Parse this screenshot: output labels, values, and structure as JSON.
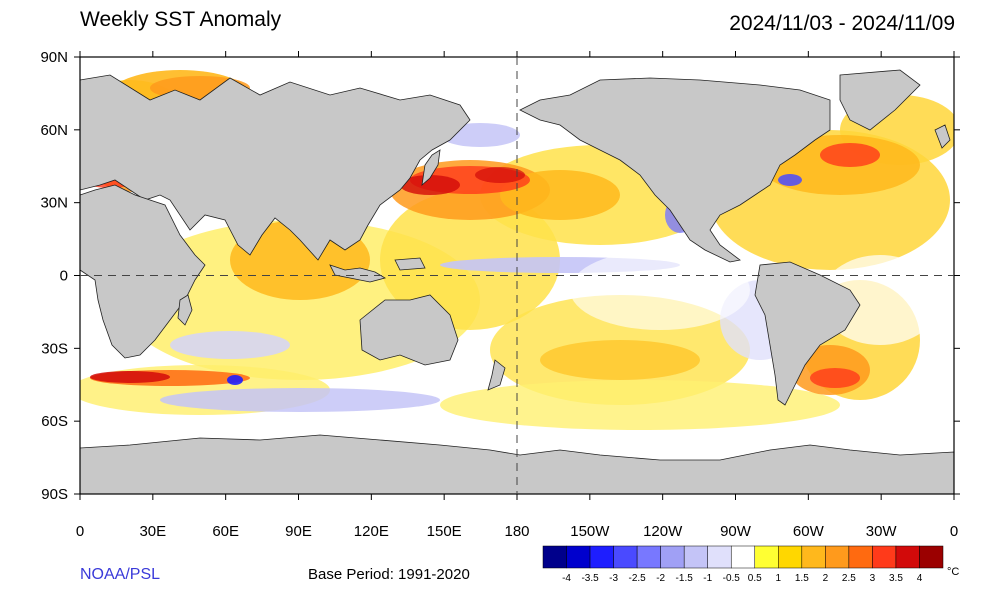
{
  "header": {
    "title": "Weekly SST Anomaly",
    "date_range": "2024/11/03 - 2024/11/09"
  },
  "axes": {
    "lat_labels": [
      "90N",
      "60N",
      "30N",
      "0",
      "30S",
      "60S",
      "90S"
    ],
    "lon_labels": [
      "0",
      "30E",
      "60E",
      "90E",
      "120E",
      "150E",
      "180",
      "150W",
      "120W",
      "90W",
      "60W",
      "30W",
      "0"
    ]
  },
  "footer": {
    "source": "NOAA/PSL",
    "base_period": "Base Period: 1991-2020"
  },
  "colorbar": {
    "labels": [
      "-4",
      "-3.5",
      "-3",
      "-2.5",
      "-2",
      "-1.5",
      "-1",
      "-0.5",
      "0.5",
      "1",
      "1.5",
      "2",
      "2.5",
      "3",
      "3.5",
      "4"
    ],
    "unit": "°C",
    "colors": [
      "#00008b",
      "#0000cd",
      "#1e1eff",
      "#4a4aff",
      "#7878ff",
      "#a0a0f5",
      "#c4c4f7",
      "#e0e0fb",
      "#ffffff",
      "#ffff33",
      "#ffd700",
      "#ffb81c",
      "#ff9a1c",
      "#ff6a10",
      "#ff3a1a",
      "#d20a0a",
      "#9b0000"
    ]
  },
  "colors": {
    "land": "#c8c8c8",
    "ocean_base": "#ffffff"
  }
}
